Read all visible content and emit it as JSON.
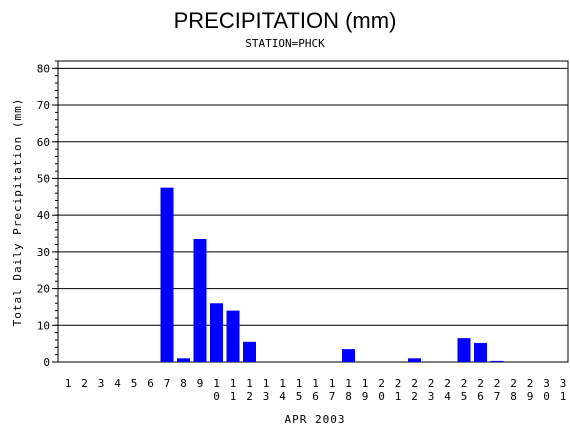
{
  "chart_data": {
    "type": "bar",
    "title": "PRECIPITATION (mm)",
    "subtitle": "STATION=PHCK",
    "xlabel": "APR 2003",
    "ylabel": "Total Daily Precipitation (mm)",
    "ylim": [
      0,
      82
    ],
    "yticks": [
      0,
      10,
      20,
      30,
      40,
      50,
      60,
      70,
      80
    ],
    "grid": true,
    "bar_color": "#0000ff",
    "categories": [
      "1",
      "2",
      "3",
      "4",
      "5",
      "6",
      "7",
      "8",
      "9",
      "10",
      "11",
      "12",
      "13",
      "14",
      "15",
      "16",
      "17",
      "18",
      "19",
      "20",
      "21",
      "22",
      "23",
      "24",
      "25",
      "26",
      "27",
      "28",
      "29",
      "30",
      "31"
    ],
    "values": [
      0,
      0,
      0,
      0,
      0,
      0,
      47.5,
      1.0,
      33.5,
      16.0,
      14.0,
      5.5,
      0,
      0,
      0,
      0,
      0,
      3.5,
      0,
      0,
      0,
      1.0,
      0,
      0,
      6.5,
      5.2,
      0.3,
      0,
      0,
      0,
      0
    ]
  }
}
